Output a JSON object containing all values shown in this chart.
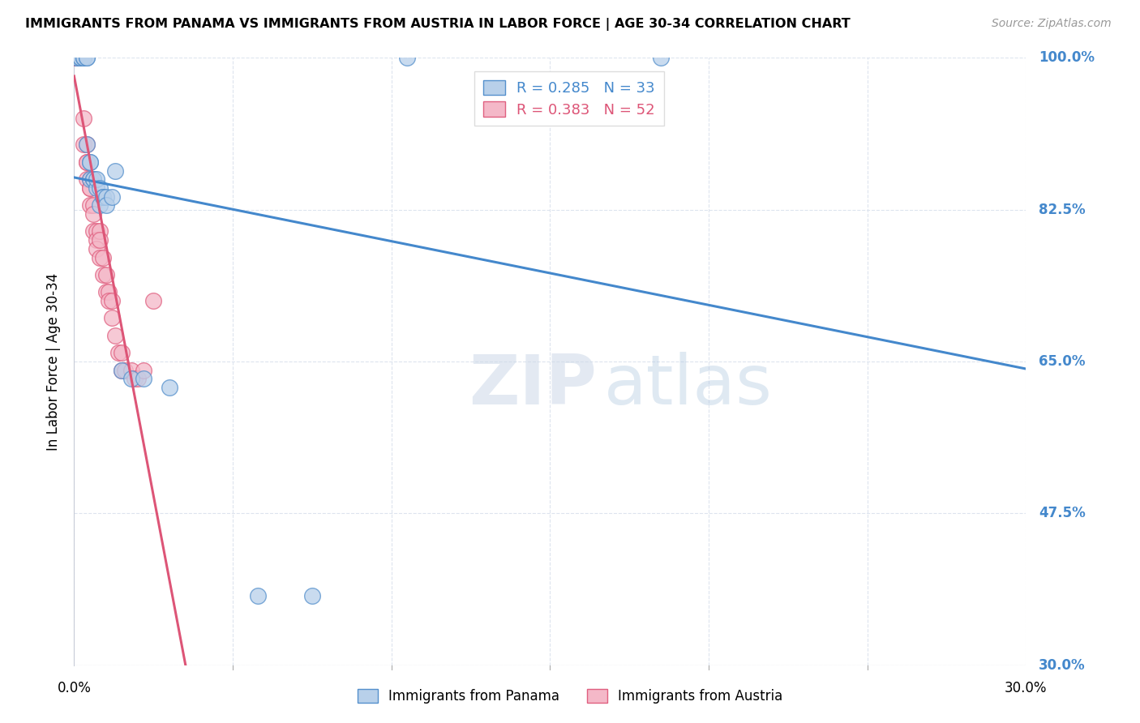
{
  "title": "IMMIGRANTS FROM PANAMA VS IMMIGRANTS FROM AUSTRIA IN LABOR FORCE | AGE 30-34 CORRELATION CHART",
  "source": "Source: ZipAtlas.com",
  "ylabel": "In Labor Force | Age 30-34",
  "legend_panama": "Immigrants from Panama",
  "legend_austria": "Immigrants from Austria",
  "r_panama": 0.285,
  "n_panama": 33,
  "r_austria": 0.383,
  "n_austria": 52,
  "xlim": [
    0.0,
    0.3
  ],
  "ylim": [
    0.3,
    1.0
  ],
  "x_ticks": [
    0.0,
    0.05,
    0.1,
    0.15,
    0.2,
    0.25,
    0.3
  ],
  "y_ticks": [
    0.3,
    0.475,
    0.65,
    0.825,
    1.0
  ],
  "y_tick_labels_right": [
    "30.0%",
    "47.5%",
    "65.0%",
    "82.5%",
    "100.0%"
  ],
  "color_panama_fill": "#b8d0ea",
  "color_panama_edge": "#5590cc",
  "color_austria_fill": "#f4b8c8",
  "color_austria_edge": "#e06080",
  "color_line_panama": "#4488cc",
  "color_line_austria": "#dd5577",
  "color_text_right": "#4488cc",
  "color_grid": "#dde4ee",
  "panama_x": [
    0.001,
    0.001,
    0.002,
    0.002,
    0.003,
    0.003,
    0.003,
    0.004,
    0.004,
    0.004,
    0.005,
    0.005,
    0.005,
    0.006,
    0.006,
    0.007,
    0.007,
    0.008,
    0.008,
    0.009,
    0.009,
    0.01,
    0.01,
    0.012,
    0.013,
    0.015,
    0.018,
    0.022,
    0.03,
    0.058,
    0.075,
    0.105,
    0.185
  ],
  "panama_y": [
    1.0,
    1.0,
    1.0,
    1.0,
    1.0,
    1.0,
    1.0,
    1.0,
    1.0,
    0.9,
    0.88,
    0.88,
    0.86,
    0.86,
    0.86,
    0.85,
    0.86,
    0.85,
    0.83,
    0.84,
    0.84,
    0.84,
    0.83,
    0.84,
    0.87,
    0.64,
    0.63,
    0.63,
    0.62,
    0.38,
    0.38,
    1.0,
    1.0
  ],
  "austria_x": [
    0.0003,
    0.0005,
    0.001,
    0.001,
    0.001,
    0.001,
    0.002,
    0.002,
    0.002,
    0.002,
    0.002,
    0.002,
    0.003,
    0.003,
    0.003,
    0.003,
    0.003,
    0.004,
    0.004,
    0.004,
    0.004,
    0.005,
    0.005,
    0.005,
    0.005,
    0.006,
    0.006,
    0.006,
    0.007,
    0.007,
    0.007,
    0.008,
    0.008,
    0.008,
    0.009,
    0.009,
    0.01,
    0.01,
    0.011,
    0.011,
    0.012,
    0.012,
    0.013,
    0.014,
    0.015,
    0.015,
    0.016,
    0.018,
    0.019,
    0.02,
    0.022,
    0.025
  ],
  "austria_y": [
    1.0,
    1.0,
    1.0,
    1.0,
    1.0,
    1.0,
    1.0,
    1.0,
    1.0,
    1.0,
    1.0,
    1.0,
    1.0,
    1.0,
    1.0,
    0.93,
    0.9,
    0.9,
    0.88,
    0.88,
    0.86,
    0.86,
    0.85,
    0.85,
    0.83,
    0.83,
    0.82,
    0.8,
    0.8,
    0.79,
    0.78,
    0.8,
    0.79,
    0.77,
    0.77,
    0.75,
    0.75,
    0.73,
    0.73,
    0.72,
    0.72,
    0.7,
    0.68,
    0.66,
    0.66,
    0.64,
    0.64,
    0.64,
    0.63,
    0.63,
    0.64,
    0.72
  ],
  "watermark_zip": "ZIP",
  "watermark_atlas": "atlas",
  "background_color": "#ffffff",
  "figsize": [
    14.06,
    8.92
  ],
  "dpi": 100
}
